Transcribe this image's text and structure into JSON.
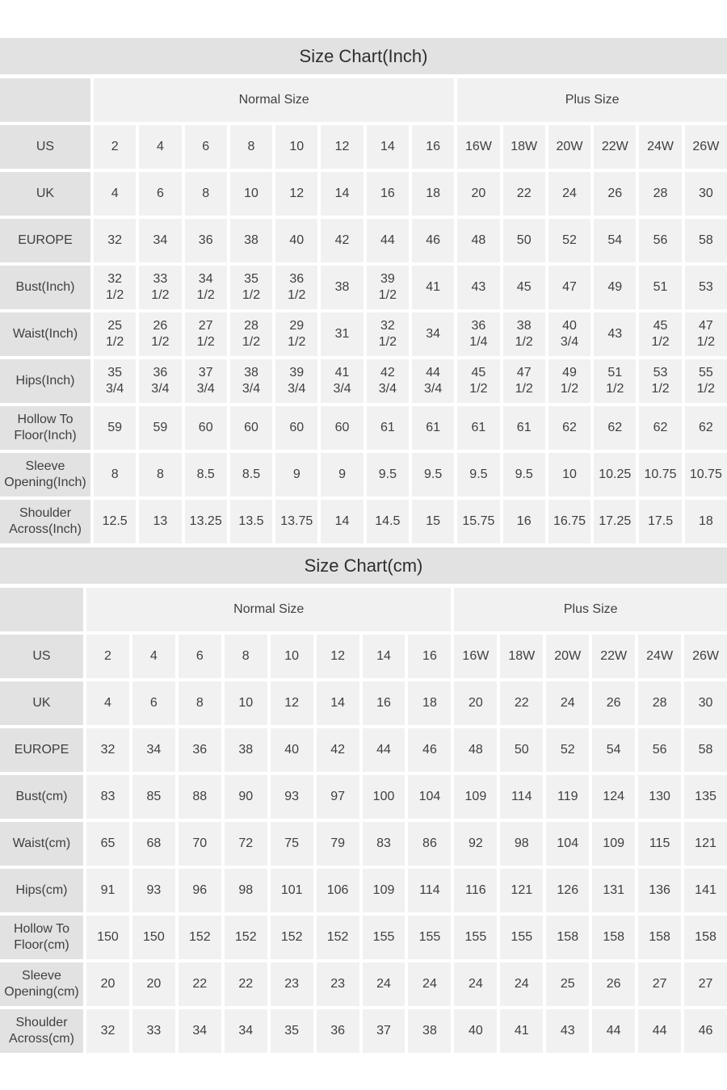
{
  "page": {
    "background": "#ffffff"
  },
  "colors": {
    "title_band_bg": "#e2e2e2",
    "row_label_bg": "#e2e2e2",
    "value_cell_bg": "#f1f1f1",
    "gap": "#ffffff",
    "title_text": "#2f2f2f",
    "cell_text": "#3f3f3f"
  },
  "chart_data": [
    {
      "type": "table",
      "title": "Size Chart(Inch)",
      "column_groups": [
        {
          "label": "Normal Size",
          "span": 8
        },
        {
          "label": "Plus Size",
          "span": 6
        }
      ],
      "rows": [
        {
          "label": "US",
          "values": [
            "2",
            "4",
            "6",
            "8",
            "10",
            "12",
            "14",
            "16",
            "16W",
            "18W",
            "20W",
            "22W",
            "24W",
            "26W"
          ]
        },
        {
          "label": "UK",
          "values": [
            "4",
            "6",
            "8",
            "10",
            "12",
            "14",
            "16",
            "18",
            "20",
            "22",
            "24",
            "26",
            "28",
            "30"
          ]
        },
        {
          "label": "EUROPE",
          "values": [
            "32",
            "34",
            "36",
            "38",
            "40",
            "42",
            "44",
            "46",
            "48",
            "50",
            "52",
            "54",
            "56",
            "58"
          ]
        },
        {
          "label": "Bust(Inch)",
          "values": [
            "32\n1/2",
            "33\n1/2",
            "34\n1/2",
            "35\n1/2",
            "36\n1/2",
            "38",
            "39\n1/2",
            "41",
            "43",
            "45",
            "47",
            "49",
            "51",
            "53"
          ]
        },
        {
          "label": "Waist(Inch)",
          "values": [
            "25\n1/2",
            "26\n1/2",
            "27\n1/2",
            "28\n1/2",
            "29\n1/2",
            "31",
            "32\n1/2",
            "34",
            "36\n1/4",
            "38\n1/2",
            "40\n3/4",
            "43",
            "45\n1/2",
            "47\n1/2"
          ]
        },
        {
          "label": "Hips(Inch)",
          "values": [
            "35\n3/4",
            "36\n3/4",
            "37\n3/4",
            "38\n3/4",
            "39\n3/4",
            "41\n3/4",
            "42\n3/4",
            "44\n3/4",
            "45\n1/2",
            "47\n1/2",
            "49\n1/2",
            "51\n1/2",
            "53\n1/2",
            "55\n1/2"
          ]
        },
        {
          "label": "Hollow To Floor(Inch)",
          "values": [
            "59",
            "59",
            "60",
            "60",
            "60",
            "60",
            "61",
            "61",
            "61",
            "61",
            "62",
            "62",
            "62",
            "62"
          ]
        },
        {
          "label": "Sleeve Opening(Inch)",
          "values": [
            "8",
            "8",
            "8.5",
            "8.5",
            "9",
            "9",
            "9.5",
            "9.5",
            "9.5",
            "9.5",
            "10",
            "10.25",
            "10.75",
            "10.75"
          ]
        },
        {
          "label": "Shoulder Across(Inch)",
          "values": [
            "12.5",
            "13",
            "13.25",
            "13.5",
            "13.75",
            "14",
            "14.5",
            "15",
            "15.75",
            "16",
            "16.75",
            "17.25",
            "17.5",
            "18"
          ]
        }
      ]
    },
    {
      "type": "table",
      "title": "Size Chart(cm)",
      "column_groups": [
        {
          "label": "Normal Size",
          "span": 8
        },
        {
          "label": "Plus Size",
          "span": 6
        }
      ],
      "rows": [
        {
          "label": "US",
          "values": [
            "2",
            "4",
            "6",
            "8",
            "10",
            "12",
            "14",
            "16",
            "16W",
            "18W",
            "20W",
            "22W",
            "24W",
            "26W"
          ]
        },
        {
          "label": "UK",
          "values": [
            "4",
            "6",
            "8",
            "10",
            "12",
            "14",
            "16",
            "18",
            "20",
            "22",
            "24",
            "26",
            "28",
            "30"
          ]
        },
        {
          "label": "EUROPE",
          "values": [
            "32",
            "34",
            "36",
            "38",
            "40",
            "42",
            "44",
            "46",
            "48",
            "50",
            "52",
            "54",
            "56",
            "58"
          ]
        },
        {
          "label": "Bust(cm)",
          "values": [
            "83",
            "85",
            "88",
            "90",
            "93",
            "97",
            "100",
            "104",
            "109",
            "114",
            "119",
            "124",
            "130",
            "135"
          ]
        },
        {
          "label": "Waist(cm)",
          "values": [
            "65",
            "68",
            "70",
            "72",
            "75",
            "79",
            "83",
            "86",
            "92",
            "98",
            "104",
            "109",
            "115",
            "121"
          ]
        },
        {
          "label": "Hips(cm)",
          "values": [
            "91",
            "93",
            "96",
            "98",
            "101",
            "106",
            "109",
            "114",
            "116",
            "121",
            "126",
            "131",
            "136",
            "141"
          ]
        },
        {
          "label": "Hollow To Floor(cm)",
          "values": [
            "150",
            "150",
            "152",
            "152",
            "152",
            "152",
            "155",
            "155",
            "155",
            "155",
            "158",
            "158",
            "158",
            "158"
          ]
        },
        {
          "label": "Sleeve Opening(cm)",
          "values": [
            "20",
            "20",
            "22",
            "22",
            "23",
            "23",
            "24",
            "24",
            "24",
            "24",
            "25",
            "26",
            "27",
            "27"
          ]
        },
        {
          "label": "Shoulder Across(cm)",
          "values": [
            "32",
            "33",
            "34",
            "34",
            "35",
            "36",
            "37",
            "38",
            "40",
            "41",
            "43",
            "44",
            "44",
            "46"
          ]
        }
      ]
    }
  ]
}
